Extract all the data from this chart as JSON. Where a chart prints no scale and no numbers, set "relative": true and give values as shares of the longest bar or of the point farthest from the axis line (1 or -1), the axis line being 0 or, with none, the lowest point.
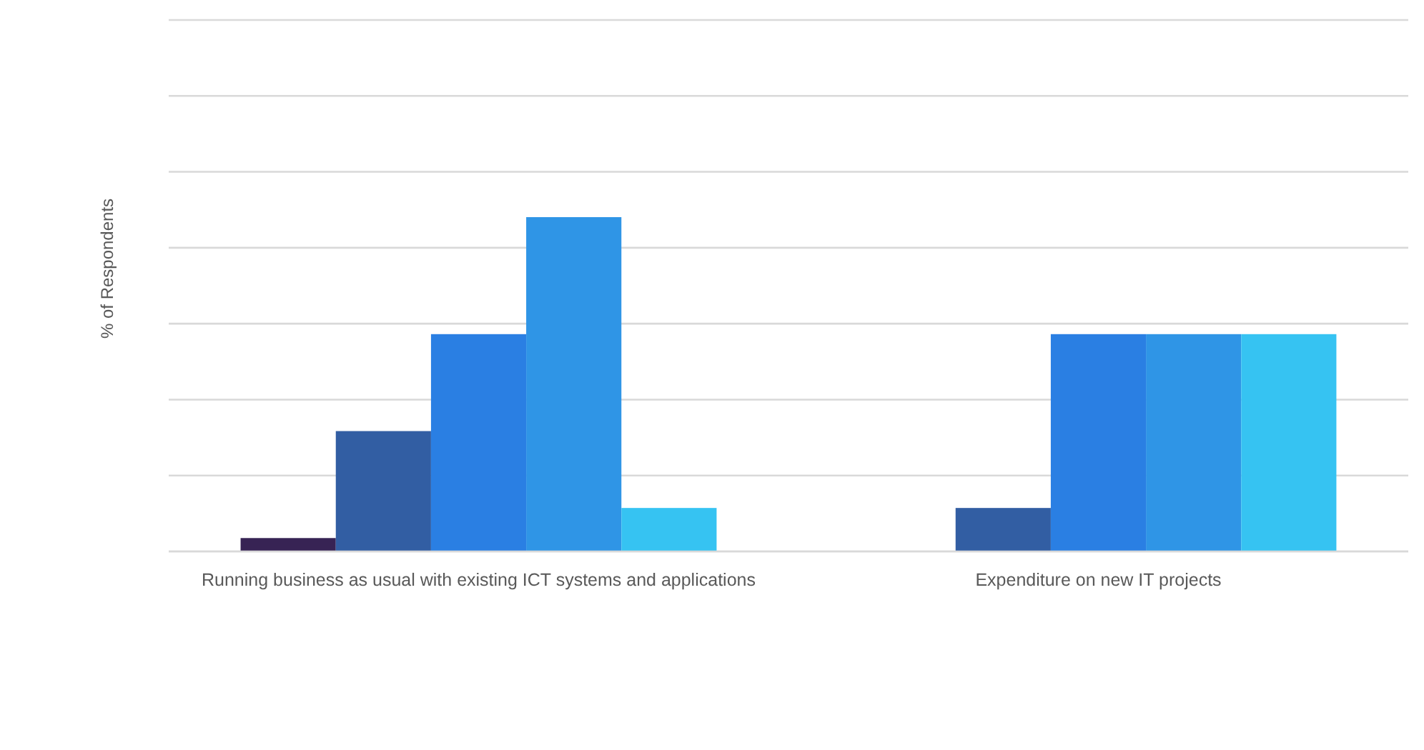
{
  "chart_data": {
    "type": "bar",
    "ylabel": "% of Respondents",
    "categories": [
      "Running business as usual with existing ICT systems and applications",
      "Expenditure on new IT projects"
    ],
    "relative": true,
    "grid": "y",
    "series": [
      {
        "color": "#372354",
        "values": [
          0.04,
          null
        ]
      },
      {
        "color": "#325ea3",
        "values": [
          0.36,
          0.13
        ]
      },
      {
        "color": "#2a7fe3",
        "values": [
          0.65,
          0.65
        ]
      },
      {
        "color": "#2f95e6",
        "values": [
          1,
          0.65
        ]
      },
      {
        "color": "#36c3f2",
        "values": [
          0.13,
          0.65
        ]
      }
    ]
  }
}
